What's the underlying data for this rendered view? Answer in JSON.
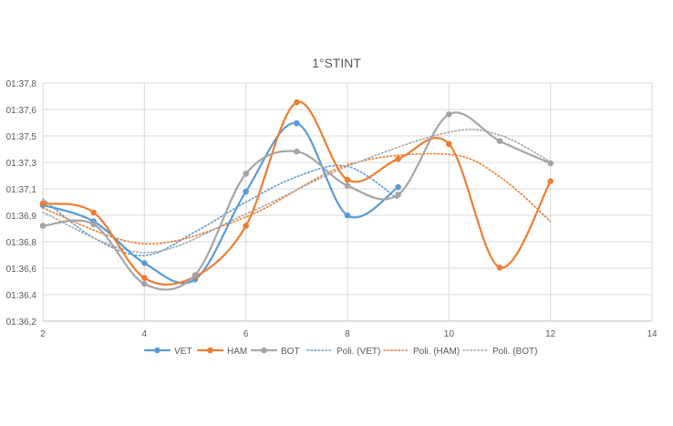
{
  "chart_data": {
    "type": "line",
    "title": "1°STINT",
    "xlabel": "",
    "ylabel": "",
    "xlim": [
      2,
      14
    ],
    "ylim": [
      96.2,
      97.8
    ],
    "x_ticks": [
      "2",
      "4",
      "6",
      "8",
      "10",
      "12",
      "14"
    ],
    "y_ticks": [
      "01:36,2",
      "01:36,4",
      "01:36,6",
      "01:36,8",
      "01:36,9",
      "01:37,1",
      "01:37,3",
      "01:37,5",
      "01:37,6",
      "01:37,8"
    ],
    "grid": true,
    "legend_position": "bottom",
    "series": [
      {
        "name": "VET",
        "color": "#5B9BD5",
        "x": [
          2,
          3,
          4,
          5,
          6,
          7,
          8,
          9
        ],
        "y": [
          96.98,
          96.87,
          96.59,
          96.48,
          97.07,
          97.53,
          96.91,
          97.1
        ]
      },
      {
        "name": "HAM",
        "color": "#ED7D31",
        "x": [
          2,
          3,
          4,
          5,
          6,
          7,
          8,
          9,
          10,
          11,
          12
        ],
        "y": [
          96.99,
          96.93,
          96.49,
          96.5,
          96.84,
          97.67,
          97.15,
          97.29,
          97.39,
          96.56,
          97.14
        ]
      },
      {
        "name": "BOT",
        "color": "#A5A5A5",
        "x": [
          2,
          3,
          4,
          5,
          6,
          7,
          8,
          9,
          10,
          11,
          12
        ],
        "y": [
          96.84,
          96.85,
          96.45,
          96.51,
          97.19,
          97.34,
          97.11,
          97.05,
          97.59,
          97.41,
          97.26
        ]
      }
    ],
    "trendlines": [
      {
        "name": "Poli. (VET)",
        "color": "#5B9BD5",
        "x": [
          2,
          3,
          4,
          5,
          6,
          7,
          8,
          9
        ],
        "y": [
          97.02,
          96.76,
          96.64,
          96.8,
          97.0,
          97.17,
          97.24,
          97.02
        ]
      },
      {
        "name": "Poli. (HAM)",
        "color": "#ED7D31",
        "x": [
          2,
          4,
          6,
          8,
          10,
          11,
          12
        ],
        "y": [
          96.96,
          96.72,
          96.9,
          97.25,
          97.32,
          97.17,
          96.87
        ]
      },
      {
        "name": "Poli. (BOT)",
        "color": "#A5A5A5",
        "x": [
          2,
          4,
          6,
          8,
          10,
          11,
          12
        ],
        "y": [
          96.93,
          96.66,
          96.92,
          97.24,
          97.47,
          97.45,
          97.27
        ]
      }
    ]
  }
}
